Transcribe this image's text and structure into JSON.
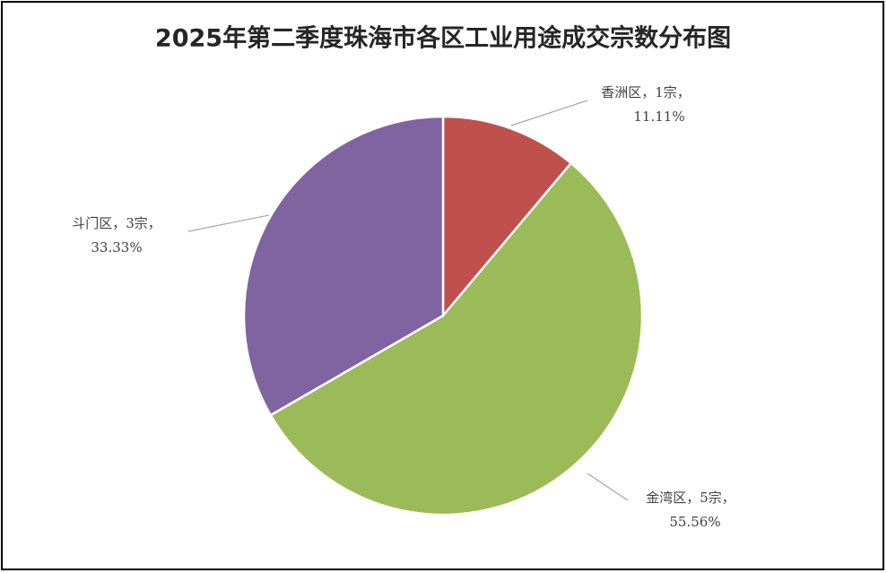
{
  "chart_data": {
    "type": "pie",
    "title": "2025年第二季度珠海市各区工业用途成交宗数分布图",
    "categories": [
      "香洲区",
      "金湾区",
      "斗门区"
    ],
    "values": [
      1,
      5,
      3
    ],
    "value_labels": [
      "，1宗，",
      "，5宗，",
      "，3宗，"
    ],
    "percentages": [
      11.11,
      55.56,
      33.33
    ],
    "percentage_labels": [
      "11.11%",
      "55.56%",
      "33.33%"
    ],
    "colors": [
      "#c0504d",
      "#9bbb59",
      "#8064a2"
    ]
  }
}
